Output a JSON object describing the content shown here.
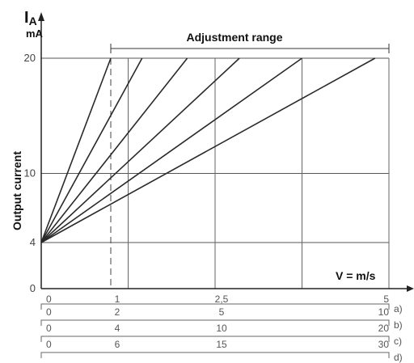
{
  "chart_data": {
    "type": "line",
    "title": "",
    "y_symbol": "I",
    "y_subscript": "A",
    "y_unit": "mA",
    "ylabel": "Output current",
    "xlabel": "V = m/s",
    "range_label": "Adjustment range",
    "ylim": [
      0,
      20
    ],
    "y_ticks": [
      0,
      4,
      10,
      20
    ],
    "x_ticks": [
      "0",
      "1",
      "2,5",
      "5"
    ],
    "x_scales": [
      {
        "tag": "a)",
        "ticks": [
          "0",
          "2",
          "5",
          "10"
        ]
      },
      {
        "tag": "b)",
        "ticks": [
          "0",
          "4",
          "10",
          "20"
        ]
      },
      {
        "tag": "c)",
        "ticks": [
          "0",
          "6",
          "15",
          "30"
        ]
      },
      {
        "tag": "d)",
        "ticks": []
      }
    ],
    "adjustment_range": [
      1,
      5
    ],
    "series": [
      {
        "x": [
          0,
          1
        ],
        "y": [
          4,
          20
        ]
      },
      {
        "x": [
          0,
          1.45
        ],
        "y": [
          4,
          20
        ]
      },
      {
        "x": [
          0,
          2.1
        ],
        "y": [
          4,
          20
        ]
      },
      {
        "x": [
          0,
          2.85
        ],
        "y": [
          4,
          20
        ]
      },
      {
        "x": [
          0,
          3.75
        ],
        "y": [
          4,
          20
        ]
      },
      {
        "x": [
          0,
          4.8
        ],
        "y": [
          4,
          20
        ]
      }
    ]
  }
}
